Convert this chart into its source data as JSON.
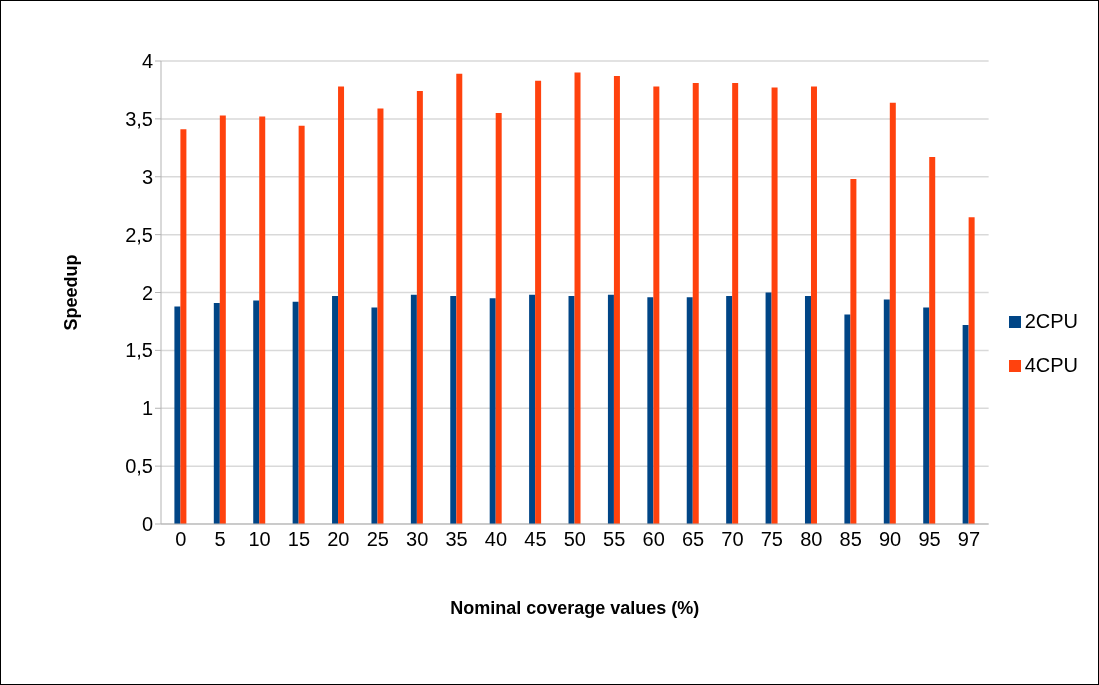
{
  "chart_data": {
    "type": "bar",
    "xlabel": "Nominal coverage values  (%)",
    "ylabel": "Speedup",
    "categories": [
      "0",
      "5",
      "10",
      "15",
      "20",
      "25",
      "30",
      "35",
      "40",
      "45",
      "50",
      "55",
      "60",
      "65",
      "70",
      "75",
      "80",
      "85",
      "90",
      "95",
      "97"
    ],
    "series": [
      {
        "name": "2CPU",
        "color": "#004586",
        "values": [
          1.88,
          1.91,
          1.93,
          1.92,
          1.97,
          1.87,
          1.98,
          1.97,
          1.95,
          1.98,
          1.97,
          1.98,
          1.96,
          1.96,
          1.97,
          2.0,
          1.97,
          1.81,
          1.94,
          1.87,
          1.72
        ]
      },
      {
        "name": "4CPU",
        "color": "#ff420e",
        "values": [
          3.41,
          3.53,
          3.52,
          3.44,
          3.78,
          3.59,
          3.74,
          3.89,
          3.55,
          3.83,
          3.9,
          3.87,
          3.78,
          3.81,
          3.81,
          3.77,
          3.78,
          2.98,
          3.64,
          3.17,
          2.65
        ]
      }
    ],
    "ylim": [
      0,
      4
    ],
    "yticks": [
      0,
      {
        "value": 0.5,
        "label": "0,5"
      },
      1,
      {
        "value": 1.5,
        "label": "1,5"
      },
      2,
      {
        "value": 2.5,
        "label": "2,5"
      },
      3,
      {
        "value": 3.5,
        "label": "3,5"
      },
      4
    ],
    "grid": "y",
    "legend": "right"
  }
}
